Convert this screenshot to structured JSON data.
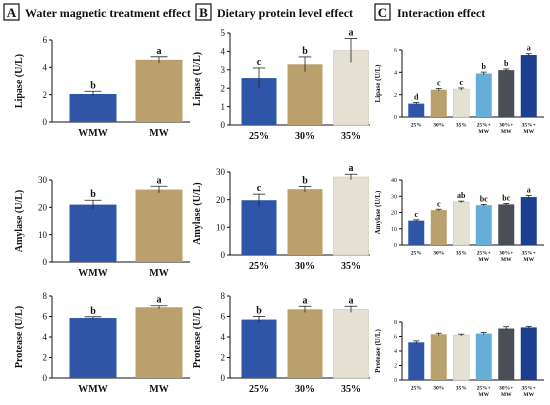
{
  "panels": [
    {
      "letter": "A",
      "title": "Water magnetic treatment effect"
    },
    {
      "letter": "B",
      "title": "Dietary protein level effect"
    },
    {
      "letter": "C",
      "title": "Interaction effect"
    }
  ],
  "colors": {
    "blue": "#2f55a8",
    "tan": "#b9a06d",
    "ivory": "#e4e0d3",
    "lightblue": "#65aed6",
    "gray": "#4a4e57",
    "navy": "#1d3f8f"
  },
  "chart_data": [
    {
      "id": "A1",
      "type": "bar",
      "ylabel": "Lipase (U/L)",
      "categories": [
        "WMW",
        "MW"
      ],
      "values": [
        2.05,
        4.55
      ],
      "errors": [
        0.2,
        0.22
      ],
      "letters": [
        "b",
        "a"
      ],
      "ylim": [
        0,
        6
      ],
      "yticks": [
        "0",
        "2",
        "4",
        "6"
      ],
      "colors": [
        "blue",
        "tan"
      ]
    },
    {
      "id": "A2",
      "type": "bar",
      "ylabel": "Amylase (U/L)",
      "categories": [
        "WMW",
        "MW"
      ],
      "values": [
        21,
        26.5
      ],
      "errors": [
        1.6,
        1.2
      ],
      "letters": [
        "b",
        "a"
      ],
      "ylim": [
        0,
        30
      ],
      "yticks": [
        "0",
        "10",
        "20",
        "30"
      ],
      "colors": [
        "blue",
        "tan"
      ]
    },
    {
      "id": "A3",
      "type": "bar",
      "ylabel": "Protease (U/L)",
      "categories": [
        "WMW",
        "MW"
      ],
      "values": [
        5.85,
        6.9
      ],
      "errors": [
        0.12,
        0.15
      ],
      "letters": [
        "b",
        "a"
      ],
      "ylim": [
        0,
        8
      ],
      "yticks": [
        "0",
        "2",
        "4",
        "6",
        "8"
      ],
      "colors": [
        "blue",
        "tan"
      ]
    },
    {
      "id": "B1",
      "type": "bar",
      "ylabel": "Lipase (U/L)",
      "categories": [
        "25%",
        "30%",
        "35%"
      ],
      "values": [
        2.55,
        3.3,
        4.05
      ],
      "errors": [
        0.55,
        0.4,
        0.65
      ],
      "letters": [
        "c",
        "b",
        "a"
      ],
      "ylim": [
        0,
        5
      ],
      "yticks": [
        "0",
        "1",
        "2",
        "3",
        "4",
        "5"
      ],
      "colors": [
        "blue",
        "tan",
        "ivory"
      ]
    },
    {
      "id": "B2",
      "type": "bar",
      "ylabel": "Amylase (U/L)",
      "categories": [
        "25%",
        "30%",
        "35%"
      ],
      "values": [
        19.8,
        23.8,
        28.2
      ],
      "errors": [
        2.2,
        1.0,
        1.0
      ],
      "letters": [
        "c",
        "b",
        "a"
      ],
      "ylim": [
        0,
        30
      ],
      "yticks": [
        "0",
        "10",
        "20",
        "30"
      ],
      "colors": [
        "blue",
        "tan",
        "ivory"
      ]
    },
    {
      "id": "B3",
      "type": "bar",
      "ylabel": "Protease (U/L)",
      "categories": [
        "25%",
        "30%",
        "35%"
      ],
      "values": [
        5.7,
        6.7,
        6.7
      ],
      "errors": [
        0.3,
        0.3,
        0.3
      ],
      "letters": [
        "b",
        "a",
        "a"
      ],
      "ylim": [
        0,
        8
      ],
      "yticks": [
        "0",
        "2",
        "4",
        "6",
        "8"
      ],
      "colors": [
        "blue",
        "tan",
        "ivory"
      ]
    },
    {
      "id": "C1",
      "type": "bar",
      "ylabel": "Lipase (U/L)",
      "categories": [
        "25%",
        "30%",
        "35%",
        "25%+\nMW",
        "30%+\nMW",
        "35%+\nMW"
      ],
      "values": [
        1.2,
        2.45,
        2.5,
        3.9,
        4.2,
        5.55
      ],
      "errors": [
        0.1,
        0.1,
        0.1,
        0.12,
        0.1,
        0.12
      ],
      "letters": [
        "d",
        "c",
        "c",
        "b",
        "b",
        "a"
      ],
      "ylim": [
        0,
        6
      ],
      "yticks": [
        "0",
        "2",
        "4",
        "6"
      ],
      "colors": [
        "blue",
        "tan",
        "ivory",
        "lightblue",
        "gray",
        "navy"
      ]
    },
    {
      "id": "C2",
      "type": "bar",
      "ylabel": "Amylase (U/L)",
      "categories": [
        "25%",
        "30%",
        "35%",
        "25%+\nMW",
        "30%+\nMW",
        "35%+\nMW"
      ],
      "values": [
        15,
        21.5,
        26.5,
        24.5,
        25,
        29.5
      ],
      "errors": [
        0.5,
        0.5,
        0.5,
        0.5,
        0.5,
        1.0
      ],
      "letters": [
        "c",
        "c",
        "ab",
        "bc",
        "bc",
        "a"
      ],
      "ylim": [
        0,
        40
      ],
      "yticks": [
        "0",
        "10",
        "20",
        "30",
        "40"
      ],
      "colors": [
        "blue",
        "tan",
        "ivory",
        "lightblue",
        "gray",
        "navy"
      ]
    },
    {
      "id": "C3",
      "type": "bar",
      "ylabel": "Protease (U/L)",
      "categories": [
        "25%",
        "30%",
        "35%",
        "25%+\nMW",
        "30%+\nMW",
        "35%+\nMW"
      ],
      "values": [
        5.2,
        6.3,
        6.2,
        6.4,
        7.1,
        7.25
      ],
      "errors": [
        0.2,
        0.15,
        0.12,
        0.15,
        0.25,
        0.15
      ],
      "letters": [
        "",
        "",
        "",
        "",
        "",
        ""
      ],
      "ylim": [
        0,
        8
      ],
      "yticks": [
        "0",
        "2",
        "4",
        "6",
        "8"
      ],
      "colors": [
        "blue",
        "tan",
        "ivory",
        "lightblue",
        "gray",
        "navy"
      ]
    }
  ]
}
